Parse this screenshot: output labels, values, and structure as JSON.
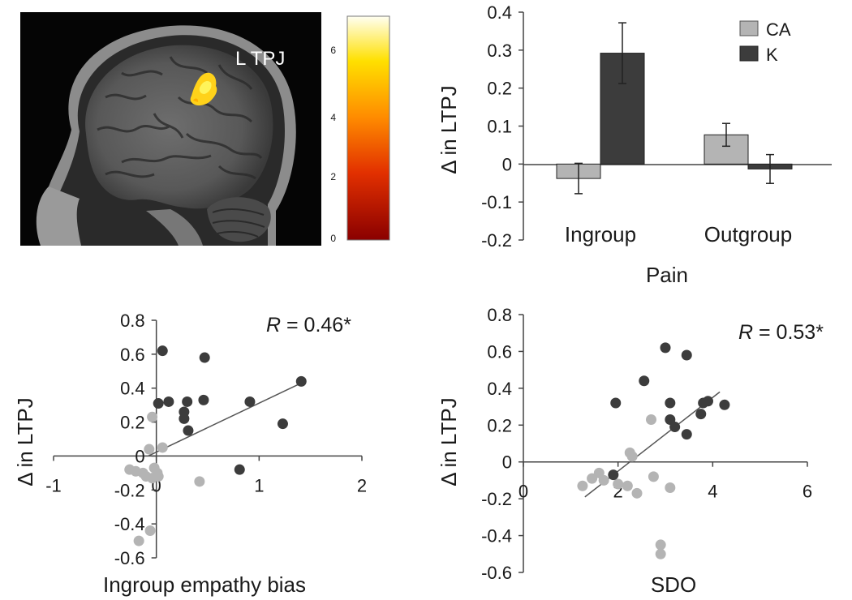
{
  "brain_panel": {
    "label": "L TPJ",
    "colorbar": {
      "ticks": [
        "6",
        "4",
        "2",
        "0"
      ],
      "min": 0,
      "max": 7
    }
  },
  "chart_data": [
    {
      "type": "bar",
      "ylabel": "Δ in LTPJ",
      "xlabel": "Pain",
      "categories": [
        "Ingroup",
        "Outgroup"
      ],
      "series": [
        {
          "name": "CA",
          "color": "#b4b4b4",
          "values": [
            -0.038,
            0.077
          ],
          "errors": [
            0.04,
            0.03
          ]
        },
        {
          "name": "K",
          "color": "#3c3c3c",
          "values": [
            0.292,
            -0.013
          ],
          "errors": [
            0.08,
            0.038
          ]
        }
      ],
      "ylim": [
        -0.2,
        0.4
      ],
      "yticks": [
        "-0.2",
        "-0.1",
        "0",
        "0.1",
        "0.2",
        "0.3",
        "0.4"
      ],
      "legend": "top-right"
    },
    {
      "type": "scatter",
      "ylabel": "Δ in LTPJ",
      "xlabel": "Ingroup empathy bias",
      "annotation": {
        "symbol": "R",
        "text": " = 0.46*"
      },
      "xlim": [
        -1,
        2
      ],
      "ylim": [
        -0.6,
        0.8
      ],
      "xticks": [
        "-1",
        "0",
        "1",
        "2"
      ],
      "yticks": [
        "-0.6",
        "-0.4",
        "-0.2",
        "0",
        "0.2",
        "0.4",
        "0.6",
        "0.8"
      ],
      "series": [
        {
          "name": "K",
          "color": "#3c3c3c",
          "points": [
            [
              0.06,
              0.62
            ],
            [
              0.47,
              0.58
            ],
            [
              1.41,
              0.44
            ],
            [
              0.02,
              0.31
            ],
            [
              0.12,
              0.32
            ],
            [
              0.3,
              0.32
            ],
            [
              0.46,
              0.33
            ],
            [
              0.91,
              0.32
            ],
            [
              0.27,
              0.26
            ],
            [
              0.27,
              0.22
            ],
            [
              0.31,
              0.15
            ],
            [
              1.23,
              0.19
            ],
            [
              0.81,
              -0.08
            ]
          ]
        },
        {
          "name": "CA",
          "color": "#b4b4b4",
          "points": [
            [
              -0.04,
              0.23
            ],
            [
              0.06,
              0.05
            ],
            [
              -0.07,
              0.04
            ],
            [
              -0.26,
              -0.08
            ],
            [
              -0.2,
              -0.09
            ],
            [
              -0.13,
              -0.1
            ],
            [
              -0.02,
              -0.07
            ],
            [
              0.01,
              -0.1
            ],
            [
              -0.1,
              -0.12
            ],
            [
              -0.04,
              -0.13
            ],
            [
              0.02,
              -0.12
            ],
            [
              0.42,
              -0.15
            ],
            [
              -0.06,
              -0.44
            ],
            [
              -0.17,
              -0.5
            ]
          ]
        }
      ],
      "fit": [
        [
          -0.08,
          0.0
        ],
        [
          1.41,
          0.43
        ]
      ]
    },
    {
      "type": "scatter",
      "ylabel": "Δ in LTPJ",
      "xlabel": "SDO",
      "annotation": {
        "symbol": "R",
        "text": " = 0.53*"
      },
      "xlim": [
        0,
        6
      ],
      "ylim": [
        -0.6,
        0.8
      ],
      "xticks": [
        "0",
        "2",
        "4",
        "6"
      ],
      "yticks": [
        "-0.6",
        "-0.4",
        "-0.2",
        "0",
        "0.2",
        "0.4",
        "0.6",
        "0.8"
      ],
      "series": [
        {
          "name": "K",
          "color": "#3c3c3c",
          "points": [
            [
              3.0,
              0.62
            ],
            [
              3.45,
              0.58
            ],
            [
              2.55,
              0.44
            ],
            [
              1.95,
              0.32
            ],
            [
              3.1,
              0.32
            ],
            [
              3.9,
              0.33
            ],
            [
              3.8,
              0.32
            ],
            [
              4.25,
              0.31
            ],
            [
              3.1,
              0.23
            ],
            [
              3.2,
              0.19
            ],
            [
              3.75,
              0.26
            ],
            [
              3.45,
              0.15
            ],
            [
              1.9,
              -0.07
            ]
          ]
        },
        {
          "name": "CA",
          "color": "#b4b4b4",
          "points": [
            [
              2.7,
              0.23
            ],
            [
              2.25,
              0.05
            ],
            [
              2.3,
              0.03
            ],
            [
              1.6,
              -0.06
            ],
            [
              1.45,
              -0.09
            ],
            [
              1.7,
              -0.1
            ],
            [
              1.25,
              -0.13
            ],
            [
              2.0,
              -0.12
            ],
            [
              2.2,
              -0.13
            ],
            [
              2.75,
              -0.08
            ],
            [
              2.4,
              -0.17
            ],
            [
              3.1,
              -0.14
            ],
            [
              2.9,
              -0.45
            ],
            [
              2.9,
              -0.5
            ]
          ]
        }
      ],
      "fit": [
        [
          1.3,
          -0.19
        ],
        [
          4.15,
          0.38
        ]
      ]
    }
  ]
}
